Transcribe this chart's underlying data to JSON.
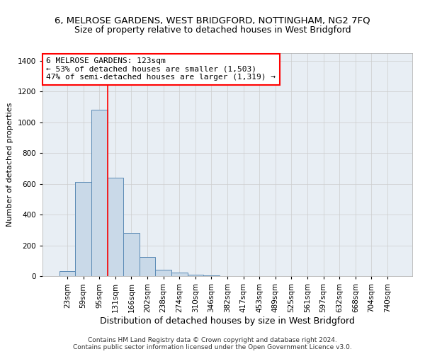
{
  "title": "6, MELROSE GARDENS, WEST BRIDGFORD, NOTTINGHAM, NG2 7FQ",
  "subtitle": "Size of property relative to detached houses in West Bridgford",
  "xlabel": "Distribution of detached houses by size in West Bridgford",
  "ylabel": "Number of detached properties",
  "bar_labels": [
    "23sqm",
    "59sqm",
    "95sqm",
    "131sqm",
    "166sqm",
    "202sqm",
    "238sqm",
    "274sqm",
    "310sqm",
    "346sqm",
    "382sqm",
    "417sqm",
    "453sqm",
    "489sqm",
    "525sqm",
    "561sqm",
    "597sqm",
    "632sqm",
    "668sqm",
    "704sqm",
    "740sqm"
  ],
  "bar_values": [
    30,
    610,
    1080,
    640,
    280,
    125,
    40,
    25,
    10,
    3,
    1,
    0,
    0,
    0,
    0,
    0,
    0,
    0,
    0,
    0,
    0
  ],
  "bar_color": "#c9d9e8",
  "bar_edge_color": "#5a8ab5",
  "vline_color": "red",
  "vline_x": 2.5,
  "ylim": [
    0,
    1450
  ],
  "yticks": [
    0,
    200,
    400,
    600,
    800,
    1000,
    1200,
    1400
  ],
  "grid_color": "#cccccc",
  "bg_color": "#e8eef4",
  "annotation_line1": "6 MELROSE GARDENS: 123sqm",
  "annotation_line2": "← 53% of detached houses are smaller (1,503)",
  "annotation_line3": "47% of semi-detached houses are larger (1,319) →",
  "annotation_box_color": "white",
  "annotation_box_edge": "red",
  "footer_line1": "Contains HM Land Registry data © Crown copyright and database right 2024.",
  "footer_line2": "Contains public sector information licensed under the Open Government Licence v3.0.",
  "title_fontsize": 9.5,
  "subtitle_fontsize": 9,
  "xlabel_fontsize": 9,
  "ylabel_fontsize": 8,
  "tick_fontsize": 7.5,
  "annotation_fontsize": 8,
  "footer_fontsize": 6.5
}
